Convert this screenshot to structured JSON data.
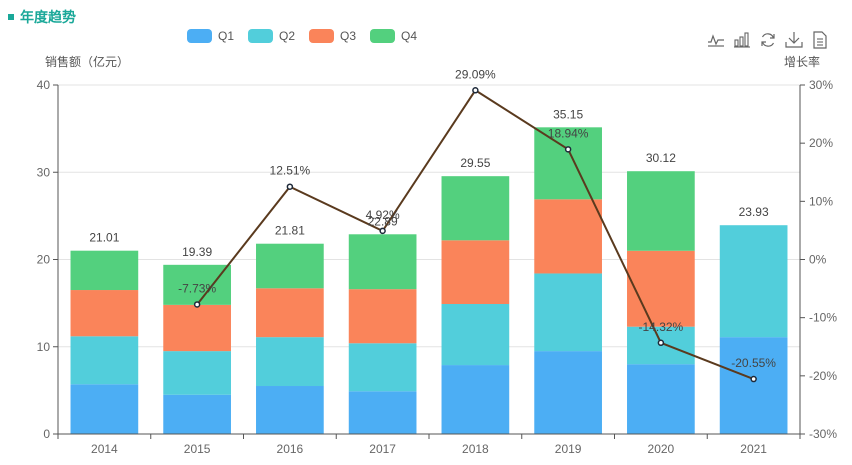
{
  "header": {
    "title": "年度趋势"
  },
  "toolbox": [
    {
      "name": "line-chart-icon",
      "label": "切换为折线图"
    },
    {
      "name": "bar-chart-icon",
      "label": "切换为柱状图"
    },
    {
      "name": "restore-icon",
      "label": "还原"
    },
    {
      "name": "download-icon",
      "label": "保存为图片"
    },
    {
      "name": "data-view-icon",
      "label": "数据视图"
    }
  ],
  "colors": {
    "Q1": "#4caef4",
    "Q2": "#52cedb",
    "Q3": "#fa845a",
    "Q4": "#53d07e",
    "line": "#5a3a1e",
    "title": "#1aa899"
  },
  "chart_data": {
    "type": "bar",
    "stacked": true,
    "title": "年度趋势",
    "categories": [
      "2014",
      "2015",
      "2016",
      "2017",
      "2018",
      "2019",
      "2020",
      "2021"
    ],
    "series": [
      {
        "name": "Q1",
        "values": [
          5.7,
          4.5,
          5.5,
          4.9,
          7.9,
          9.5,
          8.0,
          11.1
        ]
      },
      {
        "name": "Q2",
        "values": [
          5.5,
          5.0,
          5.6,
          5.5,
          7.0,
          8.9,
          4.3,
          12.83
        ]
      },
      {
        "name": "Q3",
        "values": [
          5.3,
          5.3,
          5.6,
          6.2,
          7.3,
          8.5,
          8.7,
          null
        ]
      },
      {
        "name": "Q4",
        "values": [
          4.51,
          4.59,
          5.11,
          6.29,
          7.35,
          8.25,
          9.12,
          null
        ]
      }
    ],
    "totals": [
      21.01,
      19.39,
      21.81,
      22.89,
      29.55,
      35.15,
      30.12,
      23.93
    ],
    "line_series": {
      "name": "增长率",
      "type": "line",
      "values": [
        null,
        -7.73,
        12.51,
        4.92,
        29.09,
        18.94,
        -14.32,
        -20.55
      ],
      "labels": [
        "",
        "-7.73%",
        "12.51%",
        "4.92%",
        "29.09%",
        "18.94%",
        "-14.32%",
        "-20.55%"
      ]
    },
    "ylabel": "销售额（亿元）",
    "ylim": [
      0,
      40
    ],
    "yticks": [
      "0",
      "10",
      "20",
      "30",
      "40"
    ],
    "y2label": "增长率",
    "y2lim": [
      -30,
      30
    ],
    "y2ticks": [
      "-30%",
      "-20%",
      "-10%",
      "0%",
      "10%",
      "20%",
      "30%"
    ],
    "legend": [
      "Q1",
      "Q2",
      "Q3",
      "Q4"
    ],
    "legend_position": "top-center",
    "grid": true
  }
}
